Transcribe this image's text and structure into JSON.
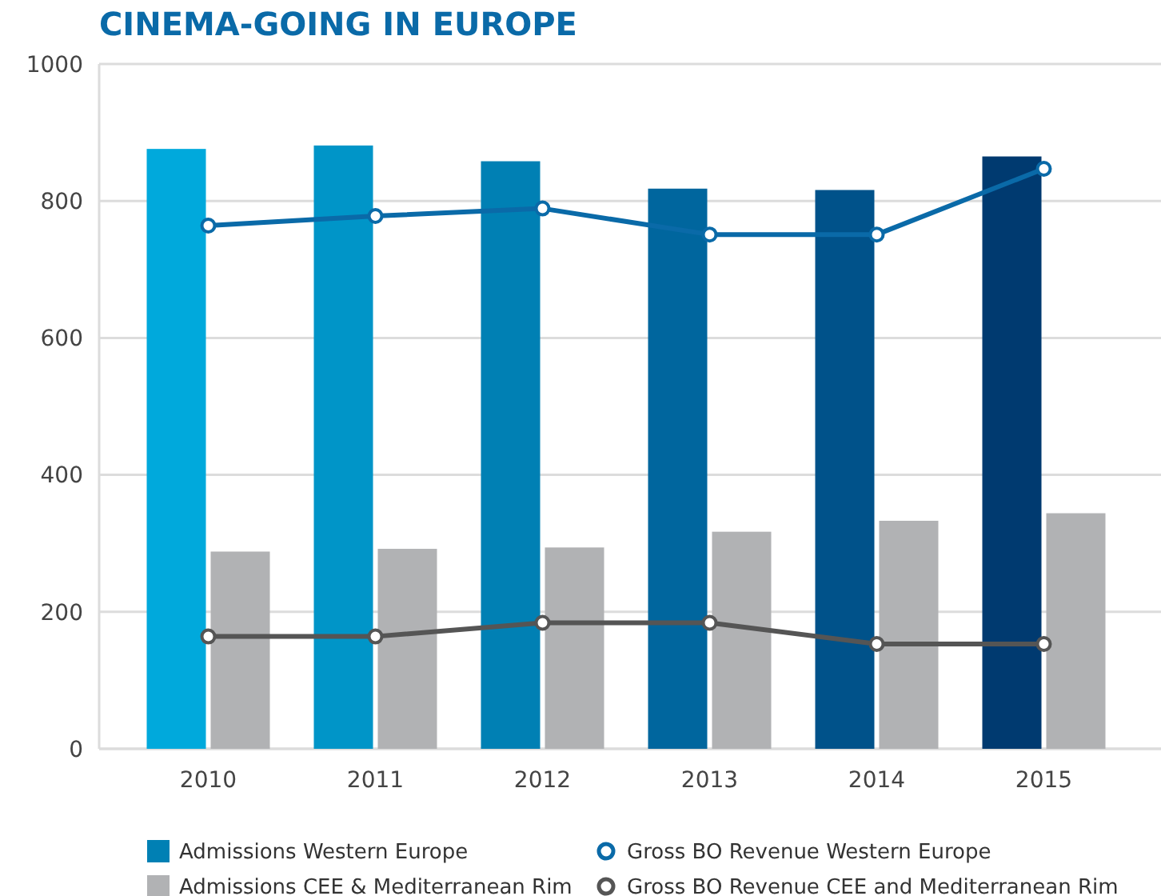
{
  "chart_data": {
    "type": "bar",
    "title": "CINEMA-GOING IN EUROPE",
    "categories": [
      "2010",
      "2011",
      "2012",
      "2013",
      "2014",
      "2015"
    ],
    "series": [
      {
        "name": "Admissions Western Europe",
        "color": "#0080b4",
        "colors": [
          "#00a9dc",
          "#0095c8",
          "#0080b4",
          "#00669e",
          "#00528a",
          "#003a70"
        ],
        "values": [
          876,
          881,
          858,
          818,
          816,
          865
        ]
      },
      {
        "name": "Admissions CEE & Mediterranean Rim",
        "color": "#b1b2b4",
        "values": [
          288,
          292,
          294,
          317,
          333,
          344
        ]
      },
      {
        "name": "Gross BO Revenue Western Europe",
        "type": "line",
        "color": "#0a6aa8",
        "values": [
          764,
          778,
          789,
          751,
          751,
          847
        ]
      },
      {
        "name": "Gross BO Revenue CEE and Mediterranean Rim",
        "type": "line",
        "color": "#555555",
        "values": [
          164,
          164,
          184,
          184,
          153,
          153
        ]
      }
    ],
    "ylim": [
      0,
      1000
    ],
    "yticks": [
      0,
      200,
      400,
      600,
      800,
      1000
    ],
    "grid": "y",
    "legend": "bottom",
    "marker": "circle",
    "line_style": "solid"
  }
}
